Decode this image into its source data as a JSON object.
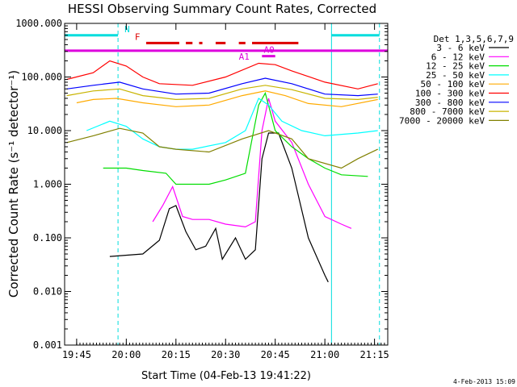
{
  "chart_data": {
    "type": "line",
    "title": "HESSI Observing Summary Count Rates, Corrected",
    "xlabel": "Start Time (04-Feb-13 19:41:22)",
    "ylabel": "Corrected Count Rate (s⁻¹ detector⁻¹)",
    "y_scale": "log",
    "ylim": [
      0.001,
      1000
    ],
    "xlim": [
      "19:41:22",
      "21:19:00"
    ],
    "x_ticks": [
      "19:45",
      "20:00",
      "20:15",
      "20:30",
      "20:45",
      "21:00",
      "21:15"
    ],
    "y_ticks": [
      "1000.000",
      "100.000",
      "10.000",
      "1.000",
      "0.100",
      "0.010",
      "0.001"
    ],
    "legend_title": "Det 1,3,5,6,7,9",
    "legend_position": "right",
    "timestamp": "4-Feb-2013 15:09",
    "series": [
      {
        "name": "3 - 6 keV",
        "color": "#000000",
        "points": [
          [
            "19:55",
            0.045
          ],
          [
            "20:05",
            0.05
          ],
          [
            "20:10",
            0.09
          ],
          [
            "20:13",
            0.35
          ],
          [
            "20:15",
            0.4
          ],
          [
            "20:18",
            0.13
          ],
          [
            "20:21",
            0.06
          ],
          [
            "20:24",
            0.07
          ],
          [
            "20:27",
            0.15
          ],
          [
            "20:29",
            0.04
          ],
          [
            "20:33",
            0.1
          ],
          [
            "20:36",
            0.04
          ],
          [
            "20:39",
            0.06
          ],
          [
            "20:41",
            3
          ],
          [
            "20:43",
            9
          ],
          [
            "20:46",
            9
          ],
          [
            "20:50",
            2
          ],
          [
            "20:55",
            0.1
          ],
          [
            "21:00",
            0.02
          ],
          [
            "21:01",
            0.015
          ]
        ]
      },
      {
        "name": "6 - 12 keV",
        "color": "#ff00ff",
        "points": [
          [
            "20:08",
            0.2
          ],
          [
            "20:11",
            0.4
          ],
          [
            "20:14",
            0.9
          ],
          [
            "20:17",
            0.25
          ],
          [
            "20:20",
            0.22
          ],
          [
            "20:25",
            0.22
          ],
          [
            "20:30",
            0.18
          ],
          [
            "20:36",
            0.16
          ],
          [
            "20:39",
            0.2
          ],
          [
            "20:41",
            10
          ],
          [
            "20:43",
            40
          ],
          [
            "20:45",
            15
          ],
          [
            "20:50",
            6
          ],
          [
            "20:55",
            1
          ],
          [
            "21:00",
            0.25
          ],
          [
            "21:05",
            0.18
          ],
          [
            "21:08",
            0.15
          ]
        ]
      },
      {
        "name": "12 - 25 keV",
        "color": "#00dd00",
        "points": [
          [
            "19:53",
            2
          ],
          [
            "20:00",
            2
          ],
          [
            "20:05",
            1.8
          ],
          [
            "20:12",
            1.6
          ],
          [
            "20:15",
            1
          ],
          [
            "20:20",
            1
          ],
          [
            "20:25",
            1
          ],
          [
            "20:30",
            1.2
          ],
          [
            "20:36",
            1.6
          ],
          [
            "20:40",
            30
          ],
          [
            "20:42",
            50
          ],
          [
            "20:45",
            10
          ],
          [
            "20:50",
            5
          ],
          [
            "20:55",
            3
          ],
          [
            "21:00",
            2
          ],
          [
            "21:05",
            1.5
          ],
          [
            "21:13",
            1.4
          ]
        ]
      },
      {
        "name": "25 - 50 keV",
        "color": "#00ffff",
        "points": [
          [
            "19:48",
            10
          ],
          [
            "19:55",
            15
          ],
          [
            "20:00",
            12
          ],
          [
            "20:05",
            7
          ],
          [
            "20:10",
            5
          ],
          [
            "20:15",
            4.5
          ],
          [
            "20:20",
            4.5
          ],
          [
            "20:30",
            6
          ],
          [
            "20:36",
            10
          ],
          [
            "20:40",
            40
          ],
          [
            "20:43",
            30
          ],
          [
            "20:47",
            15
          ],
          [
            "20:53",
            10
          ],
          [
            "21:00",
            8
          ],
          [
            "21:10",
            9
          ],
          [
            "21:16",
            10
          ]
        ]
      },
      {
        "name": "50 - 100 keV",
        "color": "#ffaa00",
        "points": [
          [
            "19:45",
            33
          ],
          [
            "19:50",
            38
          ],
          [
            "19:57",
            40
          ],
          [
            "20:05",
            33
          ],
          [
            "20:15",
            28
          ],
          [
            "20:25",
            30
          ],
          [
            "20:35",
            45
          ],
          [
            "20:42",
            55
          ],
          [
            "20:48",
            45
          ],
          [
            "20:55",
            32
          ],
          [
            "21:05",
            28
          ],
          [
            "21:16",
            38
          ]
        ]
      },
      {
        "name": "100 - 300 keV",
        "color": "#ff0000",
        "points": [
          [
            "19:42",
            90
          ],
          [
            "19:50",
            120
          ],
          [
            "19:55",
            200
          ],
          [
            "20:00",
            160
          ],
          [
            "20:05",
            100
          ],
          [
            "20:10",
            75
          ],
          [
            "20:20",
            70
          ],
          [
            "20:30",
            100
          ],
          [
            "20:40",
            180
          ],
          [
            "20:45",
            170
          ],
          [
            "20:50",
            130
          ],
          [
            "21:00",
            80
          ],
          [
            "21:10",
            60
          ],
          [
            "21:16",
            75
          ]
        ]
      },
      {
        "name": "300 - 800 keV",
        "color": "#0000ff",
        "points": [
          [
            "19:42",
            60
          ],
          [
            "19:50",
            70
          ],
          [
            "19:58",
            80
          ],
          [
            "20:05",
            60
          ],
          [
            "20:15",
            48
          ],
          [
            "20:25",
            50
          ],
          [
            "20:35",
            75
          ],
          [
            "20:42",
            95
          ],
          [
            "20:50",
            75
          ],
          [
            "21:00",
            48
          ],
          [
            "21:10",
            45
          ],
          [
            "21:16",
            48
          ]
        ]
      },
      {
        "name": "800 - 7000 keV",
        "color": "#c8b400",
        "points": [
          [
            "19:42",
            45
          ],
          [
            "19:50",
            55
          ],
          [
            "19:58",
            60
          ],
          [
            "20:05",
            45
          ],
          [
            "20:15",
            38
          ],
          [
            "20:25",
            40
          ],
          [
            "20:35",
            60
          ],
          [
            "20:42",
            70
          ],
          [
            "20:50",
            58
          ],
          [
            "21:00",
            40
          ],
          [
            "21:10",
            38
          ],
          [
            "21:16",
            42
          ]
        ]
      },
      {
        "name": "7000 - 20000 keV",
        "color": "#808000",
        "points": [
          [
            "19:42",
            6
          ],
          [
            "19:50",
            8
          ],
          [
            "19:58",
            11
          ],
          [
            "20:05",
            9
          ],
          [
            "20:10",
            5
          ],
          [
            "20:15",
            4.5
          ],
          [
            "20:25",
            4
          ],
          [
            "20:35",
            7
          ],
          [
            "20:43",
            10
          ],
          [
            "20:50",
            7
          ],
          [
            "20:55",
            3
          ],
          [
            "21:05",
            2
          ],
          [
            "21:10",
            3
          ],
          [
            "21:16",
            4.5
          ]
        ]
      }
    ],
    "flags": [
      {
        "name": "N",
        "color": "#00dddd",
        "y_value": 600,
        "segments": [
          [
            "19:41:22",
            "19:57:30"
          ],
          [
            "21:02",
            "21:16:30"
          ]
        ]
      },
      {
        "name": "F",
        "color": "#dd0000",
        "y_value": 430,
        "segments": [
          [
            "20:06",
            "20:16"
          ],
          [
            "20:18",
            "20:20"
          ],
          [
            "20:22",
            "20:23"
          ],
          [
            "20:27",
            "20:30"
          ],
          [
            "20:34",
            "20:36"
          ],
          [
            "20:38",
            "20:52"
          ]
        ]
      },
      {
        "name": "A0",
        "color": "#dd00dd",
        "y_value": 245,
        "segments": [
          [
            "20:41",
            "20:45"
          ]
        ]
      },
      {
        "name": "A1",
        "color": "#dd00dd",
        "y_value": 310,
        "segments": [
          [
            "19:41:22",
            "21:19:00"
          ]
        ]
      }
    ],
    "vlines": [
      {
        "time": "19:41:22",
        "color": "#00dddd",
        "style": "solid"
      },
      {
        "time": "19:57:30",
        "color": "#00dddd",
        "style": "dashed"
      },
      {
        "time": "21:02:00",
        "color": "#00dddd",
        "style": "solid"
      },
      {
        "time": "21:16:30",
        "color": "#00dddd",
        "style": "dashed"
      }
    ]
  }
}
